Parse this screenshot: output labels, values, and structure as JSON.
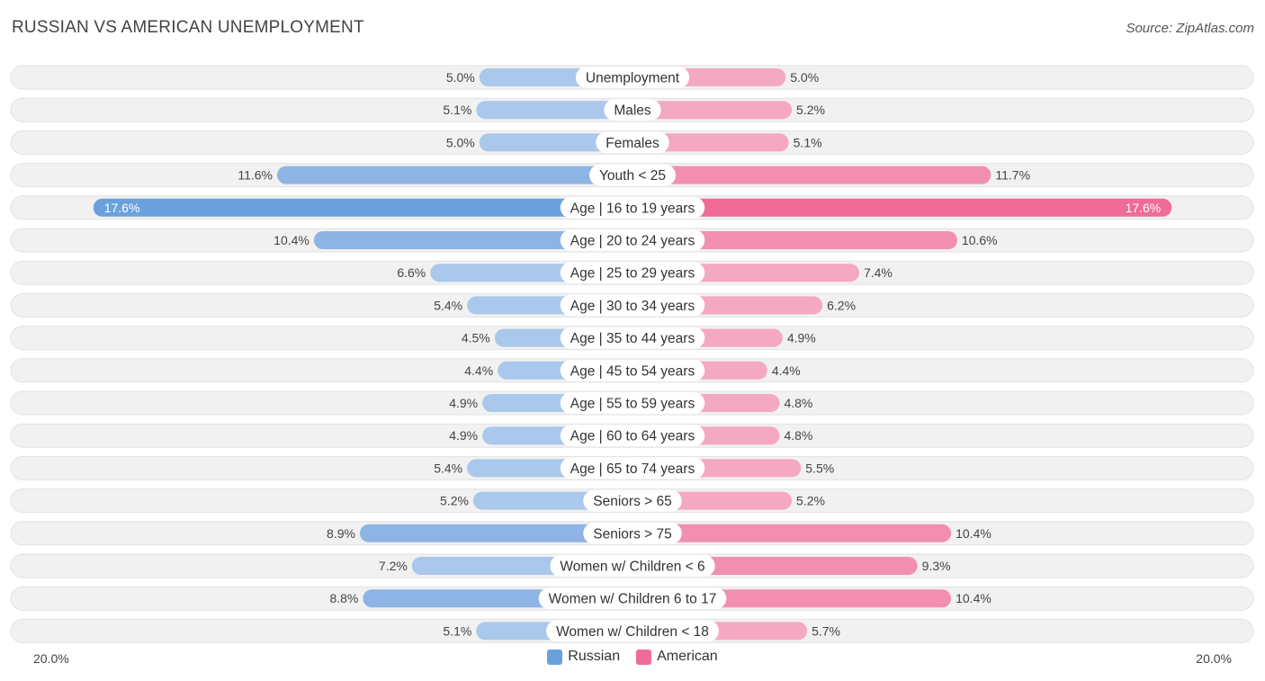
{
  "title": "RUSSIAN VS AMERICAN UNEMPLOYMENT",
  "source": "Source: ZipAtlas.com",
  "colors": {
    "russian": "#6aa1dc",
    "russian_light": "#a9c8eb",
    "american": "#f06b97",
    "american_light": "#f5a8c1"
  },
  "chart_data": {
    "type": "bar",
    "orientation": "horizontal-diverging",
    "title": "RUSSIAN VS AMERICAN UNEMPLOYMENT",
    "axis_max": 20.0,
    "axis_left_label": "20.0%",
    "axis_right_label": "20.0%",
    "legend": [
      {
        "name": "Russian",
        "key": "russian"
      },
      {
        "name": "American",
        "key": "american"
      }
    ],
    "categories": [
      "Unemployment",
      "Males",
      "Females",
      "Youth < 25",
      "Age | 16 to 19 years",
      "Age | 20 to 24 years",
      "Age | 25 to 29 years",
      "Age | 30 to 34 years",
      "Age | 35 to 44 years",
      "Age | 45 to 54 years",
      "Age | 55 to 59 years",
      "Age | 60 to 64 years",
      "Age | 65 to 74 years",
      "Seniors > 65",
      "Seniors > 75",
      "Women w/ Children < 6",
      "Women w/ Children 6 to 17",
      "Women w/ Children < 18"
    ],
    "series": [
      {
        "name": "Russian",
        "values": [
          5.0,
          5.1,
          5.0,
          11.6,
          17.6,
          10.4,
          6.6,
          5.4,
          4.5,
          4.4,
          4.9,
          4.9,
          5.4,
          5.2,
          8.9,
          7.2,
          8.8,
          5.1
        ]
      },
      {
        "name": "American",
        "values": [
          5.0,
          5.2,
          5.1,
          11.7,
          17.6,
          10.6,
          7.4,
          6.2,
          4.9,
          4.4,
          4.8,
          4.8,
          5.5,
          5.2,
          10.4,
          9.3,
          10.4,
          5.7
        ]
      }
    ],
    "labels_left": [
      "5.0%",
      "5.1%",
      "5.0%",
      "11.6%",
      "17.6%",
      "10.4%",
      "6.6%",
      "5.4%",
      "4.5%",
      "4.4%",
      "4.9%",
      "4.9%",
      "5.4%",
      "5.2%",
      "8.9%",
      "7.2%",
      "8.8%",
      "5.1%"
    ],
    "labels_right": [
      "5.0%",
      "5.2%",
      "5.1%",
      "11.7%",
      "17.6%",
      "10.6%",
      "7.4%",
      "6.2%",
      "4.9%",
      "4.4%",
      "4.8%",
      "4.8%",
      "5.5%",
      "5.2%",
      "10.4%",
      "9.3%",
      "10.4%",
      "5.7%"
    ]
  }
}
